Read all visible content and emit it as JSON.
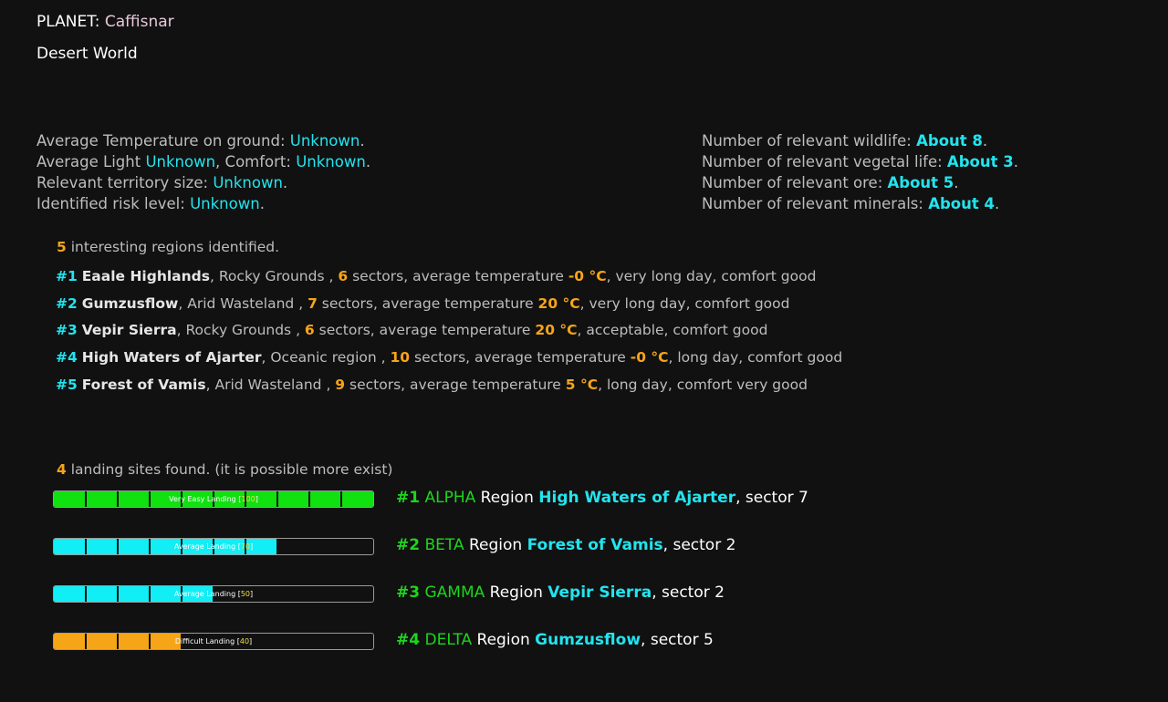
{
  "planet": {
    "label": "PLANET:",
    "name": "Caffisnar",
    "type": "Desert World"
  },
  "environment": {
    "temp_label": "Average Temperature on ground:",
    "temp_value": "Unknown",
    "light_label": "Average Light",
    "light_value": "Unknown",
    "comfort_label": "Comfort:",
    "comfort_value": "Unknown",
    "territory_label": "Relevant territory size:",
    "territory_value": "Unknown",
    "risk_label": "Identified risk level:",
    "risk_value": "Unknown"
  },
  "life": {
    "wildlife_label": "Number of relevant wildlife:",
    "wildlife_value": "About 8",
    "vegetal_label": "Number of relevant vegetal life:",
    "vegetal_value": "About 3",
    "ore_label": "Number of relevant ore:",
    "ore_value": "About 5",
    "minerals_label": "Number of relevant minerals:",
    "minerals_value": "About 4"
  },
  "regions_summary": {
    "count": "5",
    "text": "interesting regions identified."
  },
  "regions": [
    {
      "num": "#1",
      "name": "Eaale Highlands",
      "terrain": "Rocky Grounds",
      "sectors": "6",
      "temp": "-0 °C",
      "rest": "very long day, comfort good"
    },
    {
      "num": "#2",
      "name": "Gumzusflow",
      "terrain": "Arid Wasteland",
      "sectors": "7",
      "temp": "20 °C",
      "rest": "very long day, comfort good"
    },
    {
      "num": "#3",
      "name": "Vepir Sierra",
      "terrain": "Rocky Grounds",
      "sectors": "6",
      "temp": "20 °C",
      "rest": "acceptable, comfort good"
    },
    {
      "num": "#4",
      "name": "High Waters of Ajarter",
      "terrain": "Oceanic region",
      "sectors": "10",
      "temp": "-0 °C",
      "rest": "long day, comfort good"
    },
    {
      "num": "#5",
      "name": "Forest of Vamis",
      "terrain": "Arid Wasteland",
      "sectors": "9",
      "temp": "5 °C",
      "rest": "long day, comfort very good"
    }
  ],
  "common": {
    "sectors_word": "sectors, average temperature",
    "region_word": "Region",
    "sector_word": "sector"
  },
  "sites_summary": {
    "count": "4",
    "text": "landing sites found. (it is possible more exist)"
  },
  "sites": [
    {
      "num": "#1",
      "code": "ALPHA",
      "region": "High Waters of Ajarter",
      "sector": "7",
      "bar_text": "Very Easy Landing [",
      "value": "100",
      "bar_close": "]",
      "fraction": 1.0,
      "color": "#11e011"
    },
    {
      "num": "#2",
      "code": "BETA",
      "region": "Forest of Vamis",
      "sector": "2",
      "bar_text": "Average Landing [",
      "value": "70",
      "bar_close": "]",
      "fraction": 0.7,
      "color": "#11eef5"
    },
    {
      "num": "#3",
      "code": "GAMMA",
      "region": "Vepir Sierra",
      "sector": "2",
      "bar_text": "Average Landing [",
      "value": "50",
      "bar_close": "]",
      "fraction": 0.5,
      "color": "#11eef5"
    },
    {
      "num": "#4",
      "code": "DELTA",
      "region": "Gumzusflow",
      "sector": "5",
      "bar_text": "Difficult Landing [",
      "value": "40",
      "bar_close": "]",
      "fraction": 0.4,
      "color": "#f6a519"
    }
  ]
}
